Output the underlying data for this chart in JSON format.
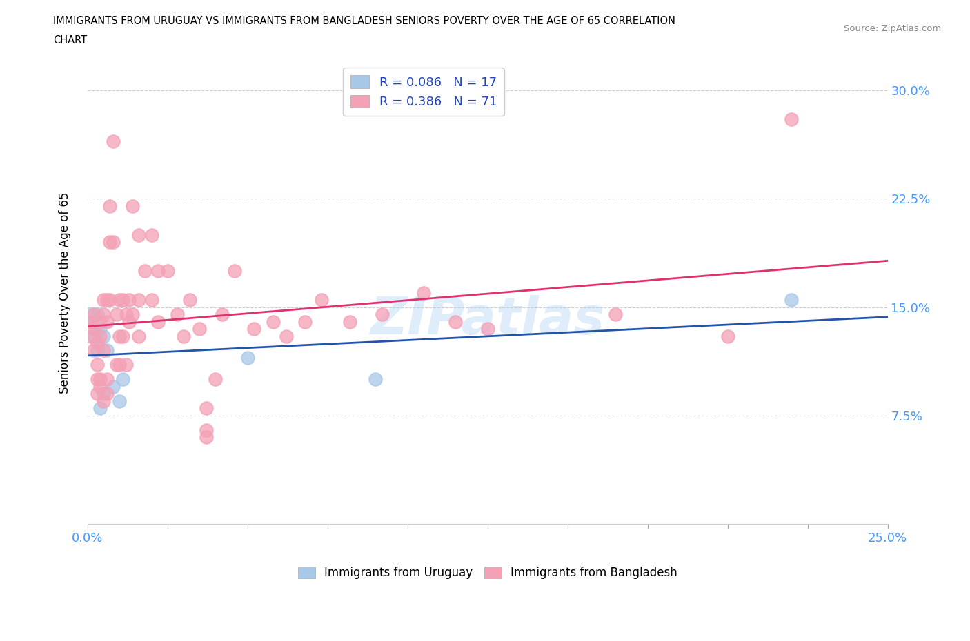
{
  "title_line1": "IMMIGRANTS FROM URUGUAY VS IMMIGRANTS FROM BANGLADESH SENIORS POVERTY OVER THE AGE OF 65 CORRELATION",
  "title_line2": "CHART",
  "source": "Source: ZipAtlas.com",
  "ylabel": "Seniors Poverty Over the Age of 65",
  "xlim": [
    0.0,
    0.25
  ],
  "ylim": [
    0.0,
    0.32
  ],
  "x_ticks": [
    0.0,
    0.025,
    0.05,
    0.075,
    0.1,
    0.125,
    0.15,
    0.175,
    0.2,
    0.225,
    0.25
  ],
  "y_ticks": [
    0.0,
    0.075,
    0.15,
    0.225,
    0.3
  ],
  "y_tick_labels": [
    "",
    "7.5%",
    "15.0%",
    "22.5%",
    "30.0%"
  ],
  "legend_r_uruguay": "R = 0.086",
  "legend_n_uruguay": "N = 17",
  "legend_r_bangladesh": "R = 0.386",
  "legend_n_bangladesh": "N = 71",
  "legend_label_uruguay": "Immigrants from Uruguay",
  "legend_label_bangladesh": "Immigrants from Bangladesh",
  "color_uruguay": "#a8c8e8",
  "color_bangladesh": "#f4a0b5",
  "trendline_color_uruguay": "#2255aa",
  "trendline_color_bangladesh": "#e03070",
  "watermark": "ZIPatlas",
  "tick_label_color": "#4499ff",
  "uruguay_scatter": [
    [
      0.001,
      0.14
    ],
    [
      0.001,
      0.145
    ],
    [
      0.002,
      0.13
    ],
    [
      0.002,
      0.14
    ],
    [
      0.003,
      0.145
    ],
    [
      0.003,
      0.12
    ],
    [
      0.004,
      0.135
    ],
    [
      0.004,
      0.08
    ],
    [
      0.005,
      0.09
    ],
    [
      0.005,
      0.13
    ],
    [
      0.006,
      0.12
    ],
    [
      0.008,
      0.095
    ],
    [
      0.01,
      0.085
    ],
    [
      0.011,
      0.1
    ],
    [
      0.05,
      0.115
    ],
    [
      0.09,
      0.1
    ],
    [
      0.22,
      0.155
    ]
  ],
  "bangladesh_scatter": [
    [
      0.001,
      0.14
    ],
    [
      0.001,
      0.13
    ],
    [
      0.002,
      0.12
    ],
    [
      0.002,
      0.135
    ],
    [
      0.002,
      0.145
    ],
    [
      0.003,
      0.125
    ],
    [
      0.003,
      0.11
    ],
    [
      0.003,
      0.1
    ],
    [
      0.003,
      0.09
    ],
    [
      0.004,
      0.13
    ],
    [
      0.004,
      0.14
    ],
    [
      0.004,
      0.1
    ],
    [
      0.004,
      0.095
    ],
    [
      0.005,
      0.155
    ],
    [
      0.005,
      0.145
    ],
    [
      0.005,
      0.12
    ],
    [
      0.005,
      0.085
    ],
    [
      0.006,
      0.14
    ],
    [
      0.006,
      0.155
    ],
    [
      0.006,
      0.1
    ],
    [
      0.006,
      0.09
    ],
    [
      0.007,
      0.22
    ],
    [
      0.007,
      0.195
    ],
    [
      0.007,
      0.155
    ],
    [
      0.008,
      0.265
    ],
    [
      0.008,
      0.195
    ],
    [
      0.009,
      0.145
    ],
    [
      0.009,
      0.11
    ],
    [
      0.01,
      0.155
    ],
    [
      0.01,
      0.13
    ],
    [
      0.01,
      0.11
    ],
    [
      0.011,
      0.155
    ],
    [
      0.011,
      0.13
    ],
    [
      0.012,
      0.145
    ],
    [
      0.012,
      0.11
    ],
    [
      0.013,
      0.155
    ],
    [
      0.013,
      0.14
    ],
    [
      0.014,
      0.22
    ],
    [
      0.014,
      0.145
    ],
    [
      0.016,
      0.2
    ],
    [
      0.016,
      0.155
    ],
    [
      0.016,
      0.13
    ],
    [
      0.018,
      0.175
    ],
    [
      0.02,
      0.2
    ],
    [
      0.02,
      0.155
    ],
    [
      0.022,
      0.175
    ],
    [
      0.022,
      0.14
    ],
    [
      0.025,
      0.175
    ],
    [
      0.028,
      0.145
    ],
    [
      0.03,
      0.13
    ],
    [
      0.032,
      0.155
    ],
    [
      0.035,
      0.135
    ],
    [
      0.037,
      0.08
    ],
    [
      0.037,
      0.065
    ],
    [
      0.037,
      0.06
    ],
    [
      0.042,
      0.145
    ],
    [
      0.046,
      0.175
    ],
    [
      0.052,
      0.135
    ],
    [
      0.058,
      0.14
    ],
    [
      0.062,
      0.13
    ],
    [
      0.068,
      0.14
    ],
    [
      0.073,
      0.155
    ],
    [
      0.082,
      0.14
    ],
    [
      0.092,
      0.145
    ],
    [
      0.105,
      0.16
    ],
    [
      0.115,
      0.14
    ],
    [
      0.125,
      0.135
    ],
    [
      0.165,
      0.145
    ],
    [
      0.2,
      0.13
    ],
    [
      0.04,
      0.1
    ],
    [
      0.22,
      0.28
    ]
  ]
}
